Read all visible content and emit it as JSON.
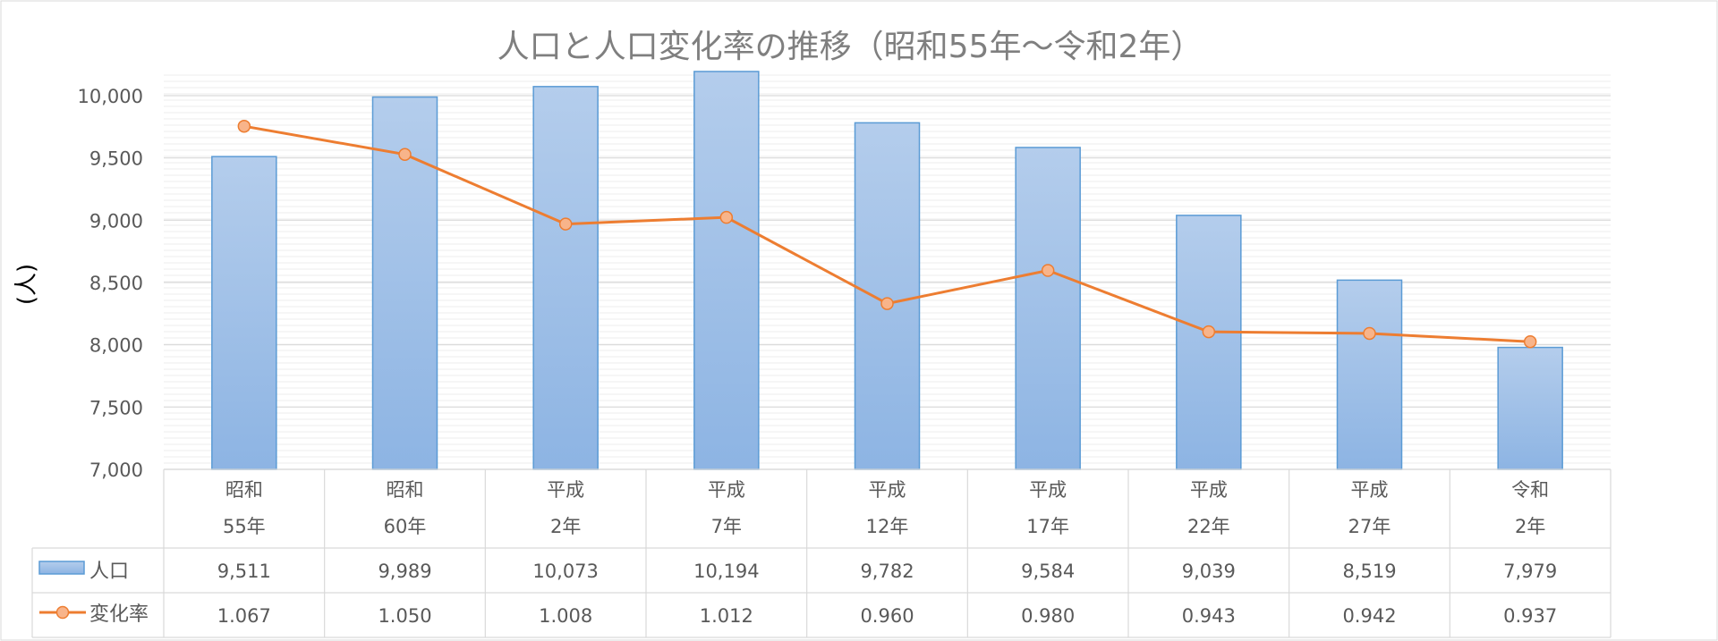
{
  "chart_data": {
    "type": "bar+line",
    "title": "人口と人口変化率の推移（昭和55年〜令和2年）",
    "ylabel": "(人)",
    "xlabel": "",
    "ylim": [
      7000,
      10000
    ],
    "yticks": [
      "7,000",
      "7,500",
      "8,000",
      "8,500",
      "9,000",
      "9,500",
      "10,000"
    ],
    "ytick_values": [
      7000,
      7500,
      8000,
      8500,
      9000,
      9500,
      10000
    ],
    "grid": true,
    "legend": "data-table",
    "categories": [
      [
        "昭和",
        "55年"
      ],
      [
        "昭和",
        "60年"
      ],
      [
        "平成",
        "2年"
      ],
      [
        "平成",
        "7年"
      ],
      [
        "平成",
        "12年"
      ],
      [
        "平成",
        "17年"
      ],
      [
        "平成",
        "22年"
      ],
      [
        "平成",
        "27年"
      ],
      [
        "令和",
        "2年"
      ]
    ],
    "series": [
      {
        "name": "人口",
        "type": "bar",
        "axis": "primary",
        "values": [
          9511,
          9989,
          10073,
          10194,
          9782,
          9584,
          9039,
          8519,
          7979
        ],
        "labels": [
          "9,511",
          "9,989",
          "10,073",
          "10,194",
          "9,782",
          "9,584",
          "9,039",
          "8,519",
          "7,979"
        ]
      },
      {
        "name": "変化率",
        "type": "line",
        "axis": "secondary-hidden",
        "values": [
          1.067,
          1.05,
          1.008,
          1.012,
          0.96,
          0.98,
          0.943,
          0.942,
          0.937
        ],
        "labels": [
          "1.067",
          "1.050",
          "1.008",
          "1.012",
          "0.960",
          "0.980",
          "0.943",
          "0.942",
          "0.937"
        ],
        "secondary_range": [
          0.86,
          1.1
        ]
      }
    ],
    "colors": {
      "bar_top": "#b4cdec",
      "bar_bottom": "#8db4e3",
      "bar_stroke": "#5b9bd5",
      "line": "#ed7d31",
      "marker_fill": "#f8b48a",
      "grid": "#d9d9d9",
      "minor_grid": "#eeeeee",
      "text": "#595959",
      "title": "#7f7f7f"
    }
  }
}
